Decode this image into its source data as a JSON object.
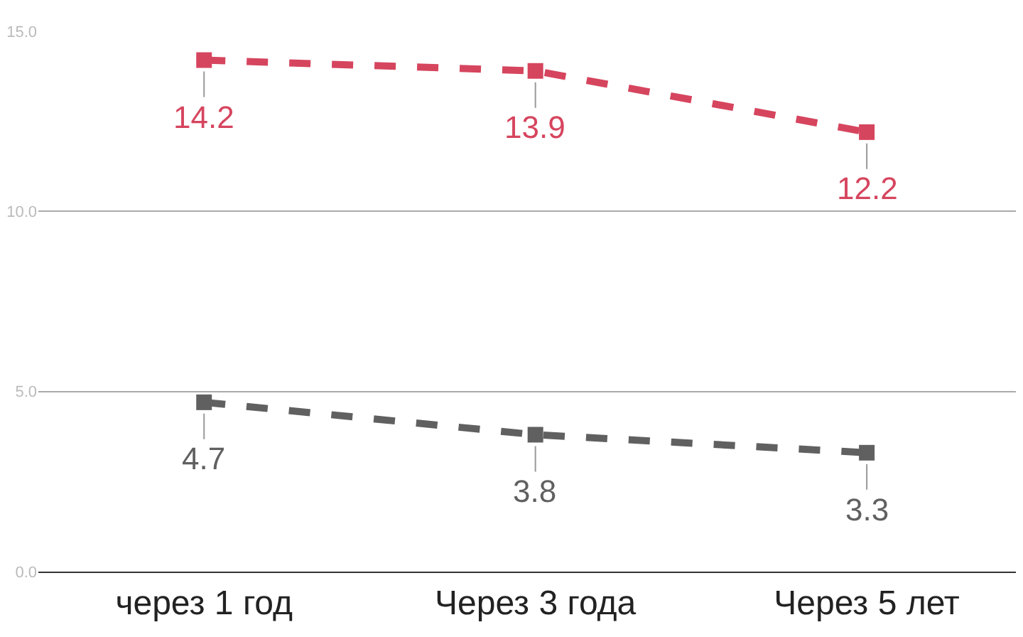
{
  "chart_data": {
    "type": "line",
    "categories": [
      "через 1 год",
      "Через 3 года",
      "Через 5 лет"
    ],
    "series": [
      {
        "color": "#d6455e",
        "values": [
          14.2,
          13.9,
          12.2
        ]
      },
      {
        "color": "#606060",
        "values": [
          4.7,
          3.8,
          3.3
        ]
      }
    ],
    "ylim": [
      0,
      15
    ],
    "yticks": [
      {
        "value": 0,
        "label": "0.0"
      },
      {
        "value": 5,
        "label": "5.0"
      },
      {
        "value": 10,
        "label": "10.0"
      },
      {
        "value": 15,
        "label": "15.0"
      }
    ],
    "grid": "y",
    "marker": "square",
    "line_style": "dashed",
    "data_labels": true,
    "legend": false
  }
}
